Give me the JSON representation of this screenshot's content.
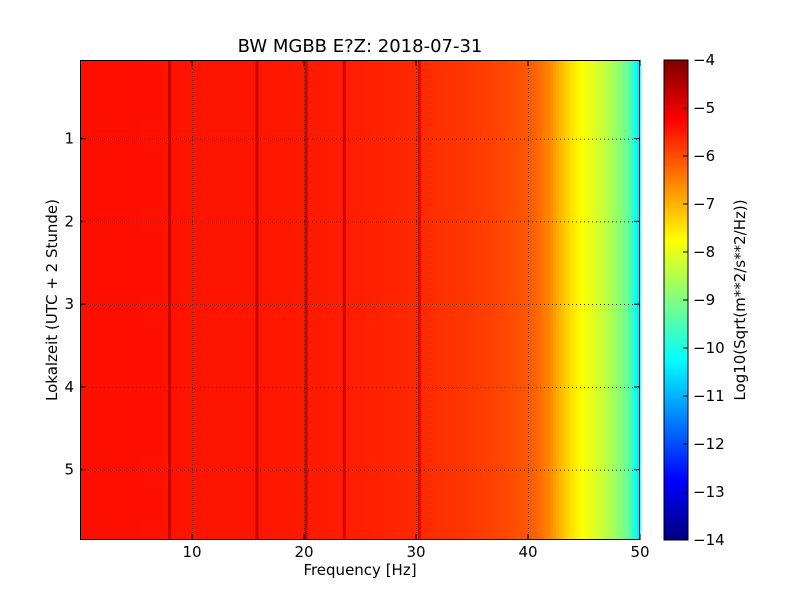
{
  "chart_data": {
    "type": "heatmap",
    "title": "BW MGBB E?Z: 2018-07-31",
    "xlabel": "Frequency [Hz]",
    "ylabel": "Lokalzeit (UTC + 2 Stunde)",
    "xlim": [
      0,
      50
    ],
    "ylim": [
      5.85,
      0.05
    ],
    "xticks": [
      10,
      20,
      30,
      40,
      50
    ],
    "yticks": [
      1,
      2,
      3,
      4,
      5
    ],
    "grid": true,
    "colormap": "jet",
    "colorbar": {
      "label": "Log10(Sqrt(m**2/s**2/Hz))",
      "range": [
        -14,
        -4
      ],
      "ticks": [
        -4,
        -5,
        -6,
        -7,
        -8,
        -9,
        -10,
        -11,
        -12,
        -13,
        -14
      ]
    },
    "spectrum_profile": {
      "frequencies": [
        0,
        5,
        10,
        15,
        20,
        25,
        30,
        35,
        38,
        40,
        41,
        42,
        43,
        44,
        45,
        46,
        47,
        48,
        49,
        50
      ],
      "values": [
        -5.4,
        -5.4,
        -5.45,
        -5.45,
        -5.5,
        -5.55,
        -5.65,
        -5.8,
        -5.95,
        -6.1,
        -6.3,
        -6.6,
        -7.1,
        -7.5,
        -7.8,
        -8.1,
        -8.4,
        -8.8,
        -9.3,
        -10.6
      ]
    },
    "spectral_lines_hz": [
      8.0,
      15.8,
      20.2,
      23.6,
      30.3
    ]
  }
}
